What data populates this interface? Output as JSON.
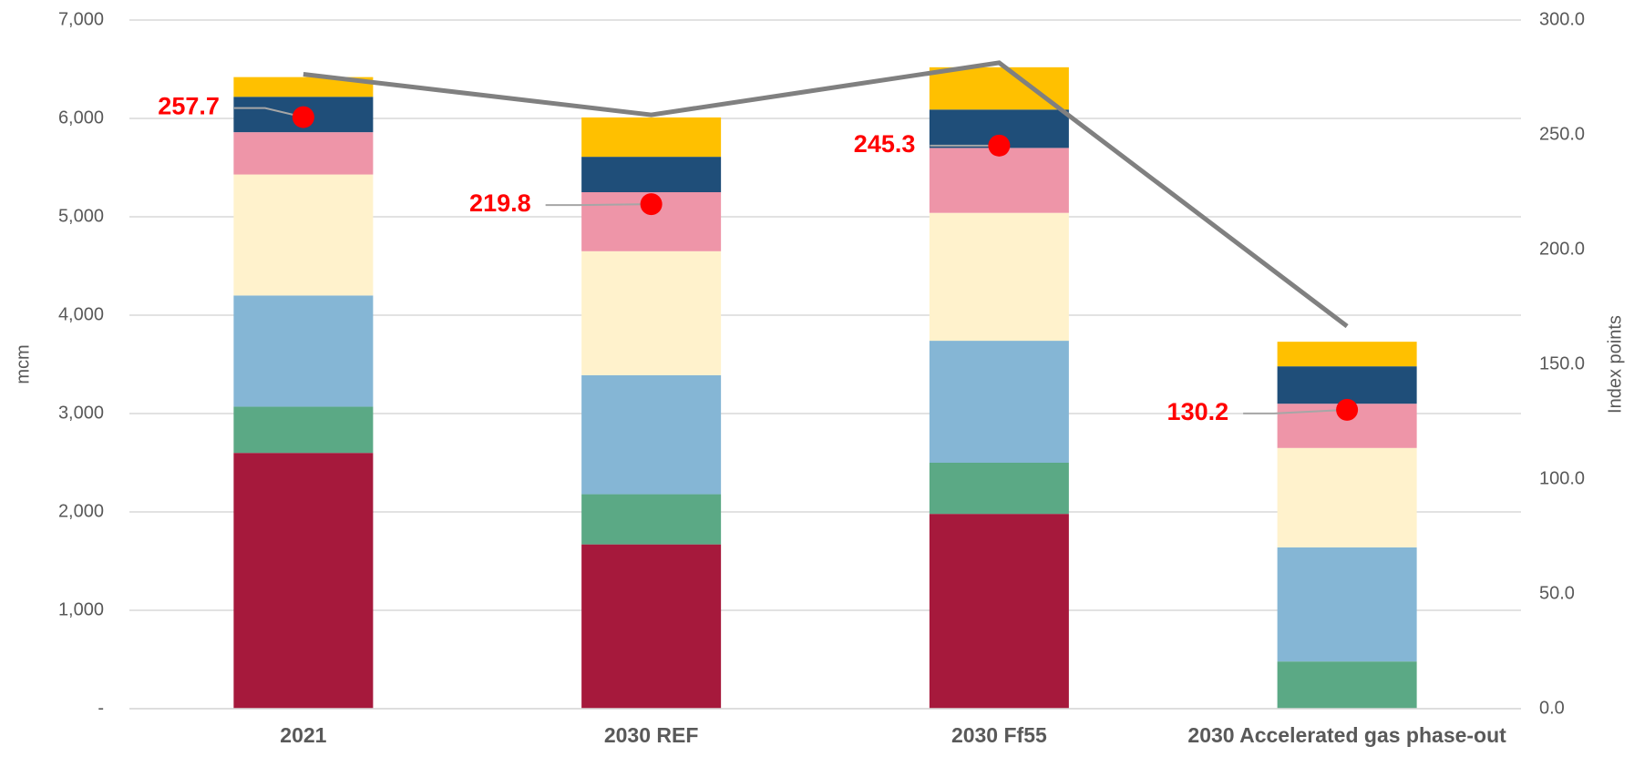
{
  "chart_data": {
    "type": "bar",
    "categories": [
      "2021",
      "2030 REF",
      "2030 Ff55",
      "2030 Accelerated gas phase-out"
    ],
    "y_label": "mcm",
    "y2_label": "Index points",
    "ylim": [
      0,
      7000
    ],
    "yticks": [
      {
        "value": 0,
        "label": "-"
      },
      {
        "value": 1000,
        "label": "1,000"
      },
      {
        "value": 2000,
        "label": "2,000"
      },
      {
        "value": 3000,
        "label": "3,000"
      },
      {
        "value": 4000,
        "label": "4,000"
      },
      {
        "value": 5000,
        "label": "5,000"
      },
      {
        "value": 6000,
        "label": "6,000"
      },
      {
        "value": 7000,
        "label": "7,000"
      }
    ],
    "y2lim": [
      0,
      300
    ],
    "y2ticks": [
      {
        "value": 0,
        "label": "0.0"
      },
      {
        "value": 50,
        "label": "50.0"
      },
      {
        "value": 100,
        "label": "100.0"
      },
      {
        "value": 150,
        "label": "150.0"
      },
      {
        "value": 200,
        "label": "200.0"
      },
      {
        "value": 250,
        "label": "250.0"
      },
      {
        "value": 300,
        "label": "300.0"
      }
    ],
    "grid": true,
    "stacked": true,
    "series": [
      {
        "color": "#a6193c",
        "values": [
          2600,
          1670,
          1980,
          0
        ]
      },
      {
        "color": "#5ba985",
        "values": [
          470,
          510,
          520,
          480
        ]
      },
      {
        "color": "#85b6d5",
        "values": [
          1130,
          1210,
          1240,
          1160
        ]
      },
      {
        "color": "#fff2cc",
        "values": [
          1230,
          1260,
          1300,
          1010
        ]
      },
      {
        "color": "#ee95a8",
        "values": [
          430,
          600,
          660,
          450
        ]
      },
      {
        "color": "#1f4e79",
        "values": [
          360,
          360,
          390,
          380
        ]
      },
      {
        "color": "#ffc000",
        "values": [
          200,
          400,
          430,
          250
        ]
      }
    ],
    "line_series": [
      {
        "type": "line",
        "axis": "y2",
        "color": "#808080",
        "values": [
          276.4,
          258.7,
          281.4,
          166.6
        ]
      },
      {
        "type": "scatter",
        "axis": "y2",
        "color": "#ff0000",
        "values": [
          257.7,
          219.8,
          245.3,
          130.2
        ]
      }
    ]
  }
}
